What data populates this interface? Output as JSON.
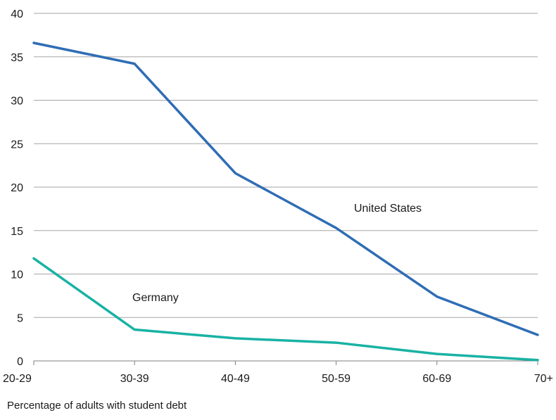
{
  "chart_data": {
    "type": "line",
    "categories": [
      "20-29",
      "30-39",
      "40-49",
      "50-59",
      "60-69",
      "70+"
    ],
    "ylim": [
      0,
      40
    ],
    "yticks": [
      0,
      5,
      10,
      15,
      20,
      25,
      30,
      35,
      40
    ],
    "grid": true,
    "series": [
      {
        "name": "United States",
        "color": "#2f6db5",
        "values": [
          36.6,
          34.2,
          21.6,
          15.3,
          7.4,
          3.0
        ]
      },
      {
        "name": "Germany",
        "color": "#19b2a4",
        "values": [
          11.8,
          3.6,
          2.6,
          2.1,
          0.8,
          0.1
        ]
      }
    ],
    "caption": "Percentage of adults with student debt"
  }
}
